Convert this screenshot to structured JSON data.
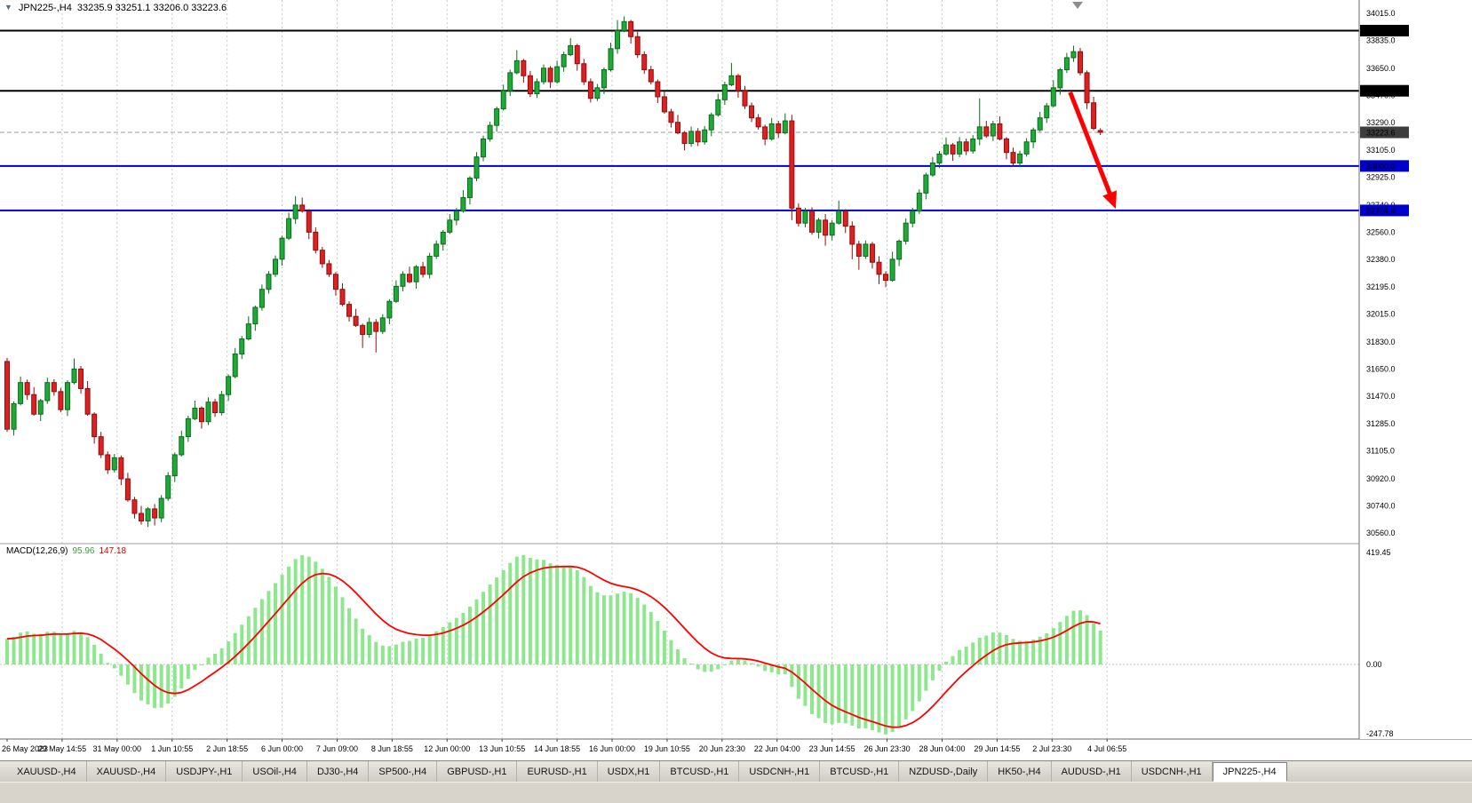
{
  "chart": {
    "symbol_period": "JPN225-,H4",
    "ohlc_line": "33235.9 33251.1 33206.0 33223.6"
  },
  "window": {
    "bottom_tabs": [
      {
        "label": "XAUUSD-,H4",
        "active": false
      },
      {
        "label": "XAUUSD-,H4",
        "active": false
      },
      {
        "label": "USDJPY-,H1",
        "active": false
      },
      {
        "label": "USOil-,H4",
        "active": false
      },
      {
        "label": "DJ30-,H4",
        "active": false
      },
      {
        "label": "SP500-,H4",
        "active": false
      },
      {
        "label": "GBPUSD-,H1",
        "active": false
      },
      {
        "label": "EURUSD-,H1",
        "active": false
      },
      {
        "label": "USDX,H1",
        "active": false
      },
      {
        "label": "BTCUSD-,H1",
        "active": false
      },
      {
        "label": "USDCNH-,H1",
        "active": false
      },
      {
        "label": "BTCUSD-,H1",
        "active": false
      },
      {
        "label": "NZDUSD-,Daily",
        "active": false
      },
      {
        "label": "HK50-,H4",
        "active": false
      },
      {
        "label": "AUDUSD-,H1",
        "active": false
      },
      {
        "label": "USDCNH-,H1",
        "active": false
      },
      {
        "label": "JPN225-,H4",
        "active": true
      }
    ]
  },
  "chart_data": {
    "type": "candlestick",
    "symbol": "JPN225-,H4",
    "timeframe": "H4",
    "last_ohlc": {
      "open": 33235.9,
      "high": 33251.1,
      "low": 33206.0,
      "close": 33223.6
    },
    "price_axis": {
      "max": 34015.0,
      "min": 30560.0,
      "current": 33223.6,
      "ticks": [
        34015.0,
        33835.0,
        33650.0,
        33470.0,
        33290.0,
        33105.0,
        32925.0,
        32740.0,
        32560.0,
        32380.0,
        32195.0,
        32015.0,
        31830.0,
        31650.0,
        31470.0,
        31285.0,
        31105.0,
        30920.0,
        30740.0,
        30560.0
      ]
    },
    "hlines": [
      {
        "price": 33900.0,
        "color": "#000000"
      },
      {
        "price": 33500.0,
        "color": "#000000"
      },
      {
        "price": 33000.0,
        "color": "#0000cd"
      },
      {
        "price": 32704.4,
        "color": "#0000cd"
      }
    ],
    "time_labels": [
      "26 May 2023",
      "29 May 14:55",
      "31 May 00:00",
      "1 Jun 10:55",
      "2 Jun 18:55",
      "6 Jun 00:00",
      "7 Jun 09:00",
      "8 Jun 18:55",
      "12 Jun 00:00",
      "13 Jun 10:55",
      "14 Jun 18:55",
      "16 Jun 00:00",
      "19 Jun 10:55",
      "20 Jun 23:30",
      "22 Jun 04:00",
      "23 Jun 14:55",
      "26 Jun 23:30",
      "28 Jun 04:00",
      "29 Jun 14:55",
      "2 Jul 23:30",
      "4 Jul 06:55"
    ],
    "candles": [
      [
        31700,
        31725,
        31232,
        31250
      ],
      [
        31250,
        31435,
        31208,
        31420
      ],
      [
        31420,
        31600,
        31408,
        31560
      ],
      [
        31560,
        31580,
        31446,
        31480
      ],
      [
        31480,
        31530,
        31340,
        31350
      ],
      [
        31350,
        31452,
        31304,
        31440
      ],
      [
        31440,
        31592,
        31418,
        31560
      ],
      [
        31560,
        31582,
        31472,
        31500
      ],
      [
        31500,
        31525,
        31362,
        31380
      ],
      [
        31380,
        31575,
        31338,
        31560
      ],
      [
        31560,
        31720,
        31548,
        31650
      ],
      [
        31650,
        31670,
        31486,
        31520
      ],
      [
        31520,
        31570,
        31340,
        31350
      ],
      [
        31350,
        31362,
        31154,
        31200
      ],
      [
        31200,
        31232,
        31058,
        31080
      ],
      [
        31080,
        31102,
        30952,
        30980
      ],
      [
        30980,
        31085,
        30962,
        31060
      ],
      [
        31060,
        31075,
        30878,
        30920
      ],
      [
        30920,
        30960,
        30768,
        30780
      ],
      [
        30780,
        30800,
        30656,
        30690
      ],
      [
        30690,
        30740,
        30615,
        30640
      ],
      [
        30640,
        30732,
        30600,
        30720
      ],
      [
        30720,
        30752,
        30610,
        30660
      ],
      [
        30660,
        30812,
        30632,
        30790
      ],
      [
        30790,
        30965,
        30772,
        30940
      ],
      [
        30940,
        31095,
        30898,
        31080
      ],
      [
        31080,
        31240,
        31068,
        31200
      ],
      [
        31200,
        31340,
        31166,
        31320
      ],
      [
        31320,
        31440,
        31310,
        31390
      ],
      [
        31390,
        31402,
        31254,
        31300
      ],
      [
        31300,
        31462,
        31278,
        31430
      ],
      [
        31430,
        31452,
        31332,
        31360
      ],
      [
        31360,
        31505,
        31342,
        31480
      ],
      [
        31480,
        31615,
        31438,
        31600
      ],
      [
        31600,
        31790,
        31588,
        31750
      ],
      [
        31750,
        31870,
        31716,
        31850
      ],
      [
        31850,
        32000,
        31840,
        31950
      ],
      [
        31950,
        32072,
        31904,
        32060
      ],
      [
        32060,
        32212,
        32038,
        32180
      ],
      [
        32180,
        32302,
        32152,
        32280
      ],
      [
        32280,
        32405,
        32262,
        32380
      ],
      [
        32380,
        32535,
        32338,
        32520
      ],
      [
        32520,
        32690,
        32508,
        32650
      ],
      [
        32650,
        32800,
        32616,
        32740
      ],
      [
        32740,
        32790,
        32690,
        32700
      ],
      [
        32700,
        32712,
        32514,
        32560
      ],
      [
        32560,
        32592,
        32418,
        32440
      ],
      [
        32440,
        32462,
        32322,
        32350
      ],
      [
        32350,
        32375,
        32262,
        32280
      ],
      [
        32280,
        32295,
        32138,
        32180
      ],
      [
        32180,
        32220,
        32068,
        32080
      ],
      [
        32080,
        32100,
        31966,
        32000
      ],
      [
        32000,
        32050,
        31930,
        31940
      ],
      [
        31940,
        31952,
        31790,
        31880
      ],
      [
        31880,
        31992,
        31858,
        31960
      ],
      [
        31960,
        31982,
        31760,
        31900
      ],
      [
        31900,
        32015,
        31882,
        31990
      ],
      [
        31990,
        32115,
        31948,
        32100
      ],
      [
        32100,
        32240,
        32088,
        32200
      ],
      [
        32200,
        32300,
        32166,
        32280
      ],
      [
        32280,
        32330,
        32220,
        32230
      ],
      [
        32230,
        32342,
        32184,
        32330
      ],
      [
        32330,
        32362,
        32258,
        32280
      ],
      [
        32280,
        32422,
        32252,
        32400
      ],
      [
        32400,
        32505,
        32382,
        32480
      ],
      [
        32480,
        32575,
        32438,
        32560
      ],
      [
        32560,
        32680,
        32548,
        32640
      ],
      [
        32640,
        32720,
        32606,
        32700
      ],
      [
        32700,
        32840,
        32690,
        32790
      ],
      [
        32790,
        32932,
        32744,
        32920
      ],
      [
        32920,
        33092,
        32898,
        33060
      ],
      [
        33060,
        33202,
        33032,
        33180
      ],
      [
        33180,
        33295,
        33162,
        33270
      ],
      [
        33270,
        33395,
        33228,
        33380
      ],
      [
        33380,
        33540,
        33368,
        33500
      ],
      [
        33500,
        33640,
        33466,
        33620
      ],
      [
        33620,
        33770,
        33610,
        33700
      ],
      [
        33700,
        33712,
        33554,
        33600
      ],
      [
        33600,
        33632,
        33458,
        33480
      ],
      [
        33480,
        33582,
        33452,
        33560
      ],
      [
        33560,
        33675,
        33542,
        33650
      ],
      [
        33650,
        33665,
        33518,
        33560
      ],
      [
        33560,
        33700,
        33548,
        33660
      ],
      [
        33660,
        33760,
        33626,
        33740
      ],
      [
        33740,
        33850,
        33730,
        33800
      ],
      [
        33800,
        33812,
        33634,
        33680
      ],
      [
        33680,
        33712,
        33538,
        33560
      ],
      [
        33560,
        33582,
        33422,
        33450
      ],
      [
        33450,
        33545,
        33432,
        33520
      ],
      [
        33520,
        33655,
        33478,
        33640
      ],
      [
        33640,
        33820,
        33628,
        33780
      ],
      [
        33780,
        33970,
        33746,
        33900
      ],
      [
        33900,
        33995,
        33890,
        33960
      ],
      [
        33960,
        33972,
        33814,
        33860
      ],
      [
        33860,
        33892,
        33718,
        33740
      ],
      [
        33740,
        33762,
        33612,
        33640
      ],
      [
        33640,
        33665,
        33542,
        33560
      ],
      [
        33560,
        33575,
        33418,
        33460
      ],
      [
        33460,
        33500,
        33348,
        33360
      ],
      [
        33360,
        33380,
        33256,
        33290
      ],
      [
        33290,
        33340,
        33210,
        33220
      ],
      [
        33220,
        33232,
        33104,
        33150
      ],
      [
        33150,
        33262,
        33128,
        33230
      ],
      [
        33230,
        33252,
        33132,
        33160
      ],
      [
        33160,
        33265,
        33142,
        33240
      ],
      [
        33240,
        33355,
        33198,
        33340
      ],
      [
        33340,
        33480,
        33328,
        33440
      ],
      [
        33440,
        33560,
        33406,
        33540
      ],
      [
        33540,
        33685,
        33530,
        33600
      ],
      [
        33600,
        33612,
        33454,
        33500
      ],
      [
        33500,
        33532,
        33378,
        33400
      ],
      [
        33400,
        33422,
        33292,
        33320
      ],
      [
        33320,
        33345,
        33242,
        33260
      ],
      [
        33260,
        33275,
        33138,
        33180
      ],
      [
        33180,
        33320,
        33168,
        33280
      ],
      [
        33280,
        33300,
        33186,
        33220
      ],
      [
        33220,
        33350,
        33210,
        33300
      ],
      [
        33300,
        33340,
        32640,
        32720
      ],
      [
        32720,
        32752,
        32598,
        32620
      ],
      [
        32620,
        32722,
        32592,
        32700
      ],
      [
        32700,
        32725,
        32542,
        32560
      ],
      [
        32560,
        32655,
        32518,
        32640
      ],
      [
        32640,
        32680,
        32470,
        32540
      ],
      [
        32540,
        32640,
        32506,
        32620
      ],
      [
        32620,
        32770,
        32610,
        32700
      ],
      [
        32700,
        32712,
        32554,
        32600
      ],
      [
        32600,
        32632,
        32380,
        32480
      ],
      [
        32480,
        32502,
        32310,
        32400
      ],
      [
        32400,
        32505,
        32382,
        32480
      ],
      [
        32480,
        32495,
        32318,
        32360
      ],
      [
        32360,
        32400,
        32215,
        32280
      ],
      [
        32280,
        32300,
        32195,
        32240
      ],
      [
        32240,
        32430,
        32230,
        32380
      ],
      [
        32380,
        32512,
        32334,
        32500
      ],
      [
        32500,
        32652,
        32478,
        32620
      ],
      [
        32620,
        32722,
        32592,
        32700
      ],
      [
        32700,
        32845,
        32682,
        32820
      ],
      [
        32820,
        32955,
        32778,
        32940
      ],
      [
        32940,
        33060,
        32928,
        33020
      ],
      [
        33020,
        33100,
        32986,
        33080
      ],
      [
        33080,
        33190,
        33070,
        33140
      ],
      [
        33140,
        33152,
        33034,
        33080
      ],
      [
        33080,
        33192,
        33058,
        33160
      ],
      [
        33160,
        33182,
        33072,
        33100
      ],
      [
        33100,
        33205,
        33082,
        33180
      ],
      [
        33180,
        33450,
        33138,
        33260
      ],
      [
        33260,
        33300,
        33188,
        33200
      ],
      [
        33200,
        33300,
        33166,
        33280
      ],
      [
        33280,
        33330,
        33170,
        33180
      ],
      [
        33180,
        33192,
        33044,
        33090
      ],
      [
        33090,
        33122,
        32998,
        33020
      ],
      [
        33020,
        33102,
        32992,
        33080
      ],
      [
        33080,
        33185,
        33062,
        33160
      ],
      [
        33160,
        33255,
        33118,
        33240
      ],
      [
        33240,
        33360,
        33228,
        33320
      ],
      [
        33320,
        33420,
        33286,
        33400
      ],
      [
        33400,
        33570,
        33390,
        33520
      ],
      [
        33520,
        33652,
        33474,
        33640
      ],
      [
        33640,
        33752,
        33618,
        33720
      ],
      [
        33720,
        33800,
        33692,
        33760
      ],
      [
        33760,
        33785,
        33602,
        33620
      ],
      [
        33620,
        33635,
        33378,
        33420
      ],
      [
        33420,
        33460,
        33238,
        33250
      ],
      [
        33235.9,
        33251.1,
        33206.0,
        33223.6
      ]
    ],
    "macd": {
      "label": "MACD(12,26,9)",
      "params": [
        12,
        26,
        9
      ],
      "value_main": "95.96",
      "value_signal": "147.18",
      "axis_labels": [
        "419.45",
        "0.00",
        "-247.78"
      ]
    },
    "annotation_arrow": {
      "from_index": 158.5,
      "from_price": 33490,
      "to_index": 165.3,
      "to_price": 32715,
      "color": "#ff0000"
    },
    "colors": {
      "bull": "#1daa35",
      "bull_edge": "#0b6b1d",
      "bear": "#e02020",
      "bear_edge": "#8e0e0e",
      "macd_hist": "#8de88d",
      "macd_signal": "#ff0000",
      "grid": "#c9c9c9",
      "current_line": "#9b9b9b",
      "current_label_bg": "#3d3d3d",
      "hline_black": "#000000",
      "hline_blue": "#0000cd"
    }
  }
}
